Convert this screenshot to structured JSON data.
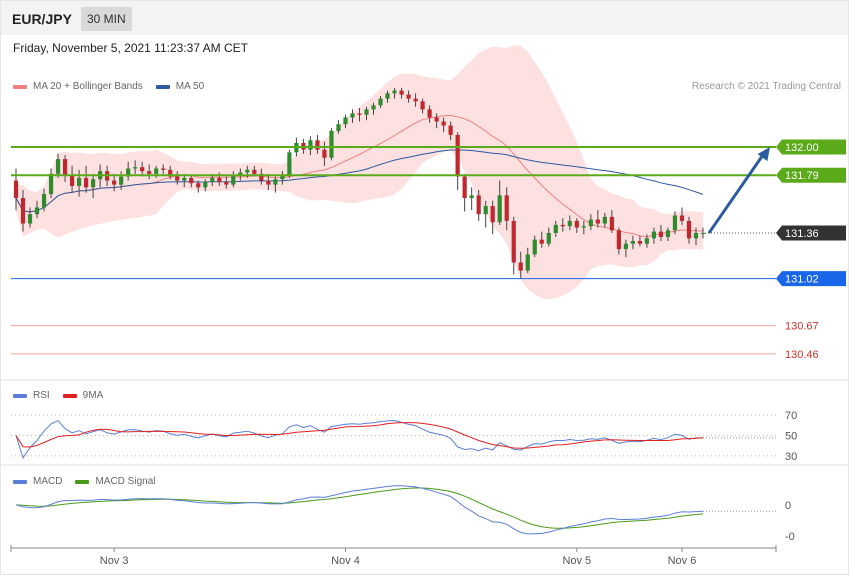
{
  "header": {
    "symbol": "EUR/JPY",
    "timeframe": "30 MIN"
  },
  "datetime": "Friday, November 5, 2021 11:23:37 AM CET",
  "credit": "Research © 2021 Trading Central",
  "legends": {
    "price": [
      {
        "label": "MA 20 + Bollinger Bands",
        "color": "#f08080"
      },
      {
        "label": "MA 50",
        "color": "#2e5aa0"
      }
    ],
    "rsi": [
      {
        "label": "RSI",
        "color": "#5b7fd6"
      },
      {
        "label": "9MA",
        "color": "#e02020"
      }
    ],
    "macd": [
      {
        "label": "MACD",
        "color": "#5b7fd6"
      },
      {
        "label": "MACD Signal",
        "color": "#4a9a1a"
      }
    ]
  },
  "colors": {
    "up": "#2e8b2e",
    "down": "#c0282f",
    "band": "#fde0e0",
    "resistance": "#5aaa1a",
    "support": "#1a66e8",
    "target": "#c8332e",
    "arrow": "#2a5aa0",
    "current": "#333333"
  },
  "chart_data": {
    "type": "candlestick",
    "price": {
      "ylim": [
        130.28,
        132.35
      ],
      "ohlc": [
        [
          131.75,
          131.84,
          131.53,
          131.62
        ],
        [
          131.62,
          131.68,
          131.37,
          131.43
        ],
        [
          131.43,
          131.55,
          131.4,
          131.5
        ],
        [
          131.5,
          131.6,
          131.47,
          131.55
        ],
        [
          131.55,
          131.69,
          131.52,
          131.65
        ],
        [
          131.65,
          131.84,
          131.62,
          131.8
        ],
        [
          131.8,
          131.95,
          131.77,
          131.91
        ],
        [
          131.91,
          131.94,
          131.74,
          131.79
        ],
        [
          131.79,
          131.86,
          131.66,
          131.71
        ],
        [
          131.71,
          131.83,
          131.63,
          131.77
        ],
        [
          131.77,
          131.86,
          131.66,
          131.7
        ],
        [
          131.7,
          131.8,
          131.62,
          131.76
        ],
        [
          131.76,
          131.87,
          131.7,
          131.82
        ],
        [
          131.82,
          131.86,
          131.71,
          131.75
        ],
        [
          131.75,
          131.8,
          131.67,
          131.72
        ],
        [
          131.72,
          131.82,
          131.68,
          131.78
        ],
        [
          131.78,
          131.89,
          131.75,
          131.84
        ],
        [
          131.84,
          131.9,
          131.8,
          131.85
        ],
        [
          131.85,
          131.89,
          131.78,
          131.82
        ],
        [
          131.82,
          131.87,
          131.76,
          131.8
        ],
        [
          131.8,
          131.86,
          131.77,
          131.84
        ],
        [
          131.84,
          131.87,
          131.8,
          131.83
        ],
        [
          131.83,
          131.86,
          131.76,
          131.78
        ],
        [
          131.78,
          131.82,
          131.72,
          131.75
        ],
        [
          131.75,
          131.8,
          131.7,
          131.77
        ],
        [
          131.77,
          131.79,
          131.7,
          131.73
        ],
        [
          131.73,
          131.75,
          131.66,
          131.7
        ],
        [
          131.7,
          131.76,
          131.67,
          131.74
        ],
        [
          131.74,
          131.8,
          131.71,
          131.77
        ],
        [
          131.77,
          131.81,
          131.71,
          131.74
        ],
        [
          131.74,
          131.78,
          131.69,
          131.72
        ],
        [
          131.72,
          131.82,
          131.7,
          131.79
        ],
        [
          131.79,
          131.84,
          131.75,
          131.81
        ],
        [
          131.81,
          131.86,
          131.77,
          131.83
        ],
        [
          131.83,
          131.86,
          131.78,
          131.8
        ],
        [
          131.8,
          131.84,
          131.72,
          131.75
        ],
        [
          131.75,
          131.8,
          131.68,
          131.72
        ],
        [
          131.72,
          131.78,
          131.66,
          131.76
        ],
        [
          131.76,
          131.82,
          131.72,
          131.79
        ],
        [
          131.79,
          131.98,
          131.77,
          131.96
        ],
        [
          131.96,
          132.07,
          131.93,
          132.03
        ],
        [
          132.03,
          132.06,
          131.95,
          131.98
        ],
        [
          131.98,
          132.08,
          131.94,
          132.05
        ],
        [
          132.05,
          132.09,
          131.95,
          131.98
        ],
        [
          131.98,
          132.04,
          131.86,
          131.92
        ],
        [
          131.92,
          132.14,
          131.9,
          132.12
        ],
        [
          132.12,
          132.2,
          132.1,
          132.17
        ],
        [
          132.17,
          132.24,
          132.14,
          132.22
        ],
        [
          132.22,
          132.28,
          132.18,
          132.25
        ],
        [
          132.25,
          132.29,
          132.19,
          132.24
        ],
        [
          132.24,
          132.3,
          132.2,
          132.28
        ],
        [
          132.28,
          132.33,
          132.24,
          132.31
        ],
        [
          132.31,
          132.38,
          132.29,
          132.36
        ],
        [
          132.36,
          132.42,
          132.33,
          132.4
        ],
        [
          132.4,
          132.44,
          132.36,
          132.42
        ],
        [
          132.42,
          132.44,
          132.36,
          132.39
        ],
        [
          132.39,
          132.42,
          132.33,
          132.36
        ],
        [
          132.36,
          132.4,
          132.3,
          132.34
        ],
        [
          132.34,
          132.36,
          132.25,
          132.28
        ],
        [
          132.28,
          132.31,
          132.18,
          132.22
        ],
        [
          132.22,
          132.25,
          132.14,
          132.19
        ],
        [
          132.19,
          132.22,
          132.11,
          132.16
        ],
        [
          132.16,
          132.19,
          132.05,
          132.09
        ],
        [
          132.09,
          132.11,
          131.68,
          131.78
        ],
        [
          131.78,
          131.8,
          131.52,
          131.62
        ],
        [
          131.62,
          131.7,
          131.53,
          131.64
        ],
        [
          131.64,
          131.68,
          131.45,
          131.5
        ],
        [
          131.5,
          131.6,
          131.4,
          131.56
        ],
        [
          131.56,
          131.6,
          131.35,
          131.44
        ],
        [
          131.44,
          131.75,
          131.42,
          131.64
        ],
        [
          131.64,
          131.7,
          131.38,
          131.45
        ],
        [
          131.45,
          131.48,
          131.05,
          131.14
        ],
        [
          131.14,
          131.22,
          131.02,
          131.08
        ],
        [
          131.08,
          131.25,
          131.06,
          131.2
        ],
        [
          131.2,
          131.34,
          131.18,
          131.31
        ],
        [
          131.31,
          131.37,
          131.25,
          131.28
        ],
        [
          131.28,
          131.4,
          131.26,
          131.36
        ],
        [
          131.36,
          131.45,
          131.33,
          131.42
        ],
        [
          131.42,
          131.47,
          131.37,
          131.41
        ],
        [
          131.41,
          131.49,
          131.38,
          131.45
        ],
        [
          131.45,
          131.47,
          131.36,
          131.4
        ],
        [
          131.4,
          131.45,
          131.35,
          131.41
        ],
        [
          131.41,
          131.5,
          131.38,
          131.46
        ],
        [
          131.46,
          131.53,
          131.4,
          131.43
        ],
        [
          131.43,
          131.51,
          131.4,
          131.48
        ],
        [
          131.48,
          131.53,
          131.36,
          131.38
        ],
        [
          131.38,
          131.4,
          131.2,
          131.24
        ],
        [
          131.24,
          131.31,
          131.18,
          131.28
        ],
        [
          131.28,
          131.34,
          131.24,
          131.3
        ],
        [
          131.3,
          131.34,
          131.26,
          131.28
        ],
        [
          131.28,
          131.35,
          131.25,
          131.32
        ],
        [
          131.32,
          131.4,
          131.28,
          131.37
        ],
        [
          131.37,
          131.42,
          131.3,
          131.33
        ],
        [
          131.33,
          131.4,
          131.3,
          131.38
        ],
        [
          131.38,
          131.52,
          131.35,
          131.49
        ],
        [
          131.49,
          131.55,
          131.42,
          131.45
        ],
        [
          131.45,
          131.48,
          131.28,
          131.32
        ],
        [
          131.32,
          131.4,
          131.27,
          131.36
        ],
        [
          131.36,
          131.4,
          131.32,
          131.36
        ]
      ],
      "levels": [
        {
          "value": 132.0,
          "label": "132.00",
          "kind": "resistance"
        },
        {
          "value": 131.79,
          "label": "131.79",
          "kind": "resistance"
        },
        {
          "value": 131.36,
          "label": "131.36",
          "kind": "current"
        },
        {
          "value": 131.02,
          "label": "131.02",
          "kind": "support"
        },
        {
          "value": 130.67,
          "label": "130.67",
          "kind": "target"
        },
        {
          "value": 130.46,
          "label": "130.46",
          "kind": "target"
        }
      ],
      "forecast_arrow": {
        "from": 131.36,
        "to": 132.0
      }
    },
    "rsi": {
      "ylim": [
        24,
        76
      ],
      "levels": [
        70,
        50,
        30
      ],
      "tick_labels": [
        "70",
        "50",
        "30"
      ]
    },
    "macd": {
      "ylim": [
        -0.33,
        0.12
      ],
      "levels": [
        0,
        -0.25
      ],
      "tick_labels": [
        "0",
        "-0"
      ]
    },
    "x_axis": {
      "labels": [
        {
          "label": "Nov 3",
          "index": 14
        },
        {
          "label": "Nov 4",
          "index": 47
        },
        {
          "label": "Nov 5",
          "index": 80
        },
        {
          "label": "Nov 6",
          "index": 95
        }
      ]
    }
  }
}
